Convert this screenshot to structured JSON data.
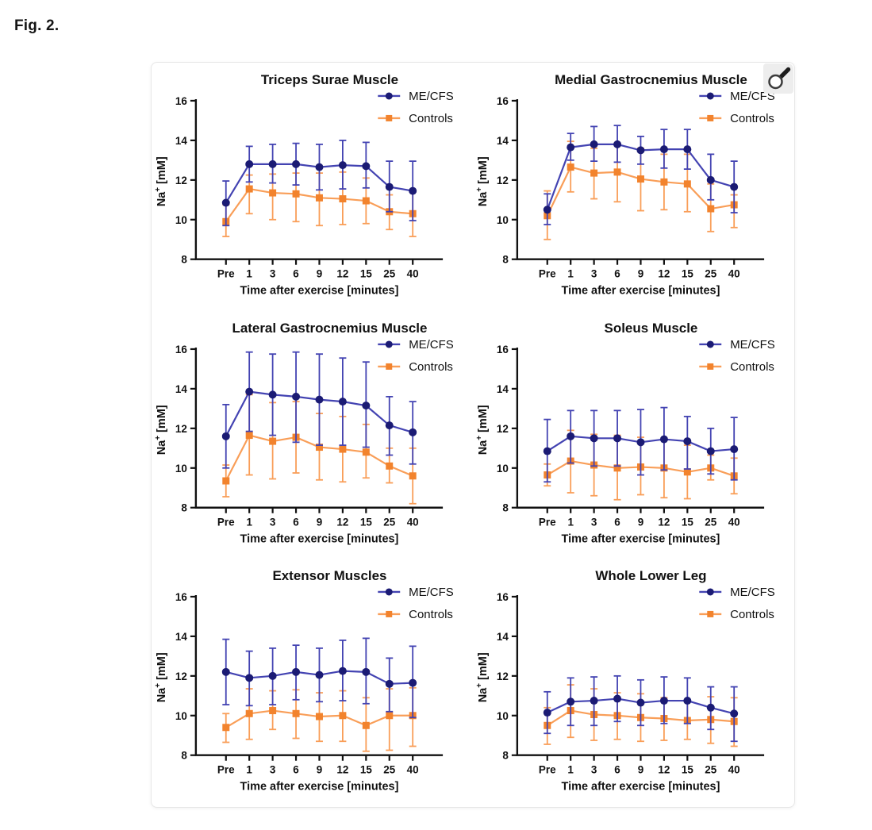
{
  "page": {
    "figure_label": "Fig. 2."
  },
  "figure_panel": {
    "zoom_button_icon": "magnifier-icon"
  },
  "chart_data": [
    {
      "type": "line",
      "title": "Triceps Surae Muscle",
      "xlabel": "Time after exercise [minutes]",
      "ylabel": "Na+ [mM]",
      "categories": [
        "Pre",
        "1",
        "3",
        "6",
        "9",
        "12",
        "15",
        "25",
        "40"
      ],
      "ylim": [
        8,
        16
      ],
      "yticks": [
        8,
        10,
        12,
        14,
        16
      ],
      "grid": false,
      "legend_position": "top-right",
      "axis_color": "#111111",
      "series": [
        {
          "name": "ME/CFS",
          "marker": "circle",
          "line_color": "#4343b2",
          "marker_color": "#1b1b74",
          "values": [
            10.85,
            12.8,
            12.8,
            12.8,
            12.65,
            12.75,
            12.7,
            11.65,
            11.45
          ],
          "upper": [
            11.95,
            13.7,
            13.8,
            13.85,
            13.8,
            14.0,
            13.9,
            12.95,
            12.95
          ],
          "lower": [
            9.7,
            11.9,
            11.85,
            11.75,
            11.5,
            11.55,
            11.6,
            10.4,
            9.95
          ]
        },
        {
          "name": "Controls",
          "marker": "square",
          "line_color": "#f99e58",
          "marker_color": "#f2832d",
          "values": [
            9.9,
            11.55,
            11.35,
            11.3,
            11.1,
            11.05,
            10.95,
            10.4,
            10.3
          ],
          "upper": [
            10.75,
            12.25,
            12.3,
            12.35,
            12.35,
            12.4,
            12.1,
            11.25,
            11.4
          ],
          "lower": [
            9.15,
            10.3,
            10.0,
            9.9,
            9.7,
            9.75,
            9.8,
            9.5,
            9.15
          ]
        }
      ]
    },
    {
      "type": "line",
      "title": "Medial Gastrocnemius Muscle",
      "xlabel": "Time after exercise [minutes]",
      "ylabel": "Na+ [mM]",
      "categories": [
        "Pre",
        "1",
        "3",
        "6",
        "9",
        "12",
        "15",
        "25",
        "40"
      ],
      "ylim": [
        8,
        16
      ],
      "yticks": [
        8,
        10,
        12,
        14,
        16
      ],
      "grid": false,
      "legend_position": "top-right",
      "axis_color": "#111111",
      "series": [
        {
          "name": "ME/CFS",
          "marker": "circle",
          "line_color": "#4343b2",
          "marker_color": "#1b1b74",
          "values": [
            10.5,
            13.65,
            13.8,
            13.8,
            13.5,
            13.55,
            13.55,
            12.0,
            11.65
          ],
          "upper": [
            11.3,
            14.35,
            14.7,
            14.75,
            14.2,
            14.55,
            14.55,
            13.3,
            12.95
          ],
          "lower": [
            9.75,
            13.0,
            12.95,
            12.9,
            12.8,
            12.6,
            12.55,
            11.0,
            10.35
          ]
        },
        {
          "name": "Controls",
          "marker": "square",
          "line_color": "#f99e58",
          "marker_color": "#f2832d",
          "values": [
            10.2,
            12.65,
            12.35,
            12.4,
            12.05,
            11.9,
            11.8,
            10.55,
            10.75
          ],
          "upper": [
            11.45,
            13.95,
            13.6,
            13.85,
            13.6,
            13.3,
            13.3,
            11.8,
            11.25
          ],
          "lower": [
            9.0,
            11.4,
            11.05,
            10.9,
            10.45,
            10.5,
            10.4,
            9.4,
            9.6
          ]
        }
      ]
    },
    {
      "type": "line",
      "title": "Lateral Gastrocnemius Muscle",
      "xlabel": "Time after exercise [minutes]",
      "ylabel": "Na+ [mM]",
      "categories": [
        "Pre",
        "1",
        "3",
        "6",
        "9",
        "12",
        "15",
        "25",
        "40"
      ],
      "ylim": [
        8,
        16
      ],
      "yticks": [
        8,
        10,
        12,
        14,
        16
      ],
      "grid": false,
      "legend_position": "top-right",
      "axis_color": "#111111",
      "series": [
        {
          "name": "ME/CFS",
          "marker": "circle",
          "line_color": "#4343b2",
          "marker_color": "#1b1b74",
          "values": [
            11.6,
            13.85,
            13.7,
            13.6,
            13.45,
            13.35,
            13.15,
            12.15,
            11.8
          ],
          "upper": [
            13.2,
            15.85,
            15.75,
            15.85,
            15.75,
            15.55,
            15.35,
            13.6,
            13.35
          ],
          "lower": [
            10.0,
            11.85,
            11.65,
            11.3,
            11.15,
            11.15,
            11.05,
            10.65,
            10.2
          ]
        },
        {
          "name": "Controls",
          "marker": "square",
          "line_color": "#f99e58",
          "marker_color": "#f2832d",
          "values": [
            9.35,
            11.65,
            11.35,
            11.55,
            11.05,
            10.95,
            10.8,
            10.1,
            9.6
          ],
          "upper": [
            10.15,
            13.7,
            13.3,
            13.35,
            12.75,
            12.6,
            12.2,
            11.0,
            11.0
          ],
          "lower": [
            8.55,
            9.65,
            9.45,
            9.75,
            9.4,
            9.3,
            9.5,
            9.25,
            8.2
          ]
        }
      ]
    },
    {
      "type": "line",
      "title": "Soleus Muscle",
      "xlabel": "Time after exercise [minutes]",
      "ylabel": "Na+ [mM]",
      "categories": [
        "Pre",
        "1",
        "3",
        "6",
        "9",
        "12",
        "15",
        "25",
        "40"
      ],
      "ylim": [
        8,
        16
      ],
      "yticks": [
        8,
        10,
        12,
        14,
        16
      ],
      "grid": false,
      "legend_position": "top-right",
      "axis_color": "#111111",
      "series": [
        {
          "name": "ME/CFS",
          "marker": "circle",
          "line_color": "#4343b2",
          "marker_color": "#1b1b74",
          "values": [
            10.85,
            11.6,
            11.5,
            11.5,
            11.3,
            11.45,
            11.35,
            10.85,
            10.95
          ],
          "upper": [
            12.45,
            12.9,
            12.9,
            12.9,
            12.95,
            13.05,
            12.6,
            12.0,
            12.55
          ],
          "lower": [
            9.3,
            10.25,
            10.1,
            10.1,
            9.65,
            9.9,
            9.95,
            9.7,
            9.4
          ]
        },
        {
          "name": "Controls",
          "marker": "square",
          "line_color": "#f99e58",
          "marker_color": "#f2832d",
          "values": [
            9.65,
            10.35,
            10.15,
            10.0,
            10.05,
            10.0,
            9.8,
            10.0,
            9.6
          ],
          "upper": [
            10.2,
            11.9,
            11.7,
            11.65,
            11.55,
            11.4,
            11.15,
            10.65,
            10.5
          ],
          "lower": [
            9.1,
            8.75,
            8.6,
            8.4,
            8.65,
            8.5,
            8.45,
            9.4,
            8.7
          ]
        }
      ]
    },
    {
      "type": "line",
      "title": "Extensor Muscles",
      "xlabel": "Time after exercise [minutes]",
      "ylabel": "Na+ [mM]",
      "categories": [
        "Pre",
        "1",
        "3",
        "6",
        "9",
        "12",
        "15",
        "25",
        "40"
      ],
      "ylim": [
        8,
        16
      ],
      "yticks": [
        8,
        10,
        12,
        14,
        16
      ],
      "grid": false,
      "legend_position": "top-right",
      "axis_color": "#111111",
      "series": [
        {
          "name": "ME/CFS",
          "marker": "circle",
          "line_color": "#4343b2",
          "marker_color": "#1b1b74",
          "values": [
            12.2,
            11.9,
            12.0,
            12.2,
            12.05,
            12.25,
            12.2,
            11.6,
            11.65
          ],
          "upper": [
            13.85,
            13.25,
            13.4,
            13.55,
            13.4,
            13.8,
            13.9,
            12.9,
            13.5
          ],
          "lower": [
            10.55,
            10.5,
            10.55,
            10.8,
            10.7,
            10.75,
            10.6,
            10.2,
            9.9
          ]
        },
        {
          "name": "Controls",
          "marker": "square",
          "line_color": "#f99e58",
          "marker_color": "#f2832d",
          "values": [
            9.4,
            10.1,
            10.25,
            10.1,
            9.95,
            10.0,
            9.5,
            10.0,
            10.0
          ],
          "upper": [
            10.1,
            11.35,
            11.25,
            11.3,
            11.15,
            11.25,
            10.9,
            11.35,
            11.4
          ],
          "lower": [
            8.65,
            8.8,
            9.3,
            8.85,
            8.7,
            8.7,
            8.2,
            8.25,
            8.45
          ]
        }
      ]
    },
    {
      "type": "line",
      "title": "Whole Lower Leg",
      "xlabel": "Time after exercise [minutes]",
      "ylabel": "Na+ [mM]",
      "categories": [
        "Pre",
        "1",
        "3",
        "6",
        "9",
        "12",
        "15",
        "25",
        "40"
      ],
      "ylim": [
        8,
        16
      ],
      "yticks": [
        8,
        10,
        12,
        14,
        16
      ],
      "grid": false,
      "legend_position": "top-right",
      "axis_color": "#111111",
      "series": [
        {
          "name": "ME/CFS",
          "marker": "circle",
          "line_color": "#4343b2",
          "marker_color": "#1b1b74",
          "values": [
            10.15,
            10.7,
            10.75,
            10.85,
            10.65,
            10.75,
            10.75,
            10.4,
            10.1
          ],
          "upper": [
            11.2,
            11.9,
            11.95,
            12.0,
            11.8,
            11.95,
            11.9,
            11.45,
            11.45
          ],
          "lower": [
            9.1,
            9.5,
            9.5,
            9.7,
            9.5,
            9.6,
            9.6,
            9.3,
            8.7
          ]
        },
        {
          "name": "Controls",
          "marker": "square",
          "line_color": "#f99e58",
          "marker_color": "#f2832d",
          "values": [
            9.5,
            10.25,
            10.05,
            10.0,
            9.9,
            9.85,
            9.75,
            9.8,
            9.7
          ],
          "upper": [
            10.4,
            11.55,
            11.35,
            11.15,
            11.1,
            10.9,
            10.7,
            10.95,
            10.9
          ],
          "lower": [
            8.55,
            8.9,
            8.75,
            8.8,
            8.7,
            8.75,
            8.8,
            8.6,
            8.45
          ]
        }
      ]
    }
  ]
}
